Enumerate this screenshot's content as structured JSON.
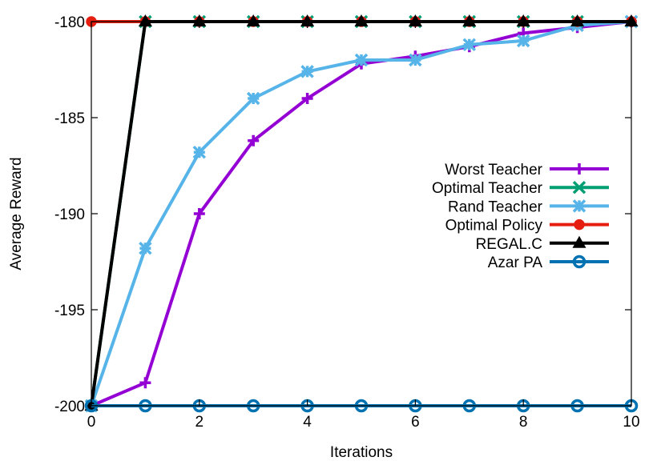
{
  "chart_data": {
    "type": "line",
    "title": "",
    "xlabel": "Iterations",
    "ylabel": "Average Reward",
    "xlim": [
      0,
      10
    ],
    "ylim": [
      -200,
      -180
    ],
    "xticks": [
      0,
      2,
      4,
      6,
      8,
      10
    ],
    "yticks": [
      -200,
      -195,
      -190,
      -185,
      -180
    ],
    "grid": false,
    "legend_position": "right",
    "x": [
      0,
      1,
      2,
      3,
      4,
      5,
      6,
      7,
      8,
      9,
      10
    ],
    "series": [
      {
        "name": "Worst Teacher",
        "color": "#9400d3",
        "marker": "plus",
        "values": [
          -200,
          -198.8,
          -190,
          -186.2,
          -184,
          -182.2,
          -181.8,
          -181.3,
          -180.6,
          -180.3,
          -180
        ]
      },
      {
        "name": "Optimal Teacher",
        "color": "#009e73",
        "marker": "x",
        "values": [
          -200,
          -180,
          -180,
          -180,
          -180,
          -180,
          -180,
          -180,
          -180,
          -180,
          -180
        ]
      },
      {
        "name": "Rand Teacher",
        "color": "#56b4e9",
        "marker": "star",
        "values": [
          -200,
          -191.8,
          -186.8,
          -184,
          -182.6,
          -182,
          -182,
          -181.2,
          -181,
          -180.2,
          -180
        ]
      },
      {
        "name": "Optimal Policy",
        "color": "#e51e10",
        "marker": "circle-filled",
        "values": [
          -180,
          -180,
          -180,
          -180,
          -180,
          -180,
          -180,
          -180,
          -180,
          -180,
          -180
        ]
      },
      {
        "name": "REGAL.C",
        "color": "#000000",
        "marker": "triangle",
        "values": [
          -200,
          -180,
          -180,
          -180,
          -180,
          -180,
          -180,
          -180,
          -180,
          -180,
          -180
        ]
      },
      {
        "name": "Azar PA",
        "color": "#0072b2",
        "marker": "circle-open",
        "values": [
          -200,
          -200,
          -200,
          -200,
          -200,
          -200,
          -200,
          -200,
          -200,
          -200,
          -200
        ]
      }
    ]
  }
}
